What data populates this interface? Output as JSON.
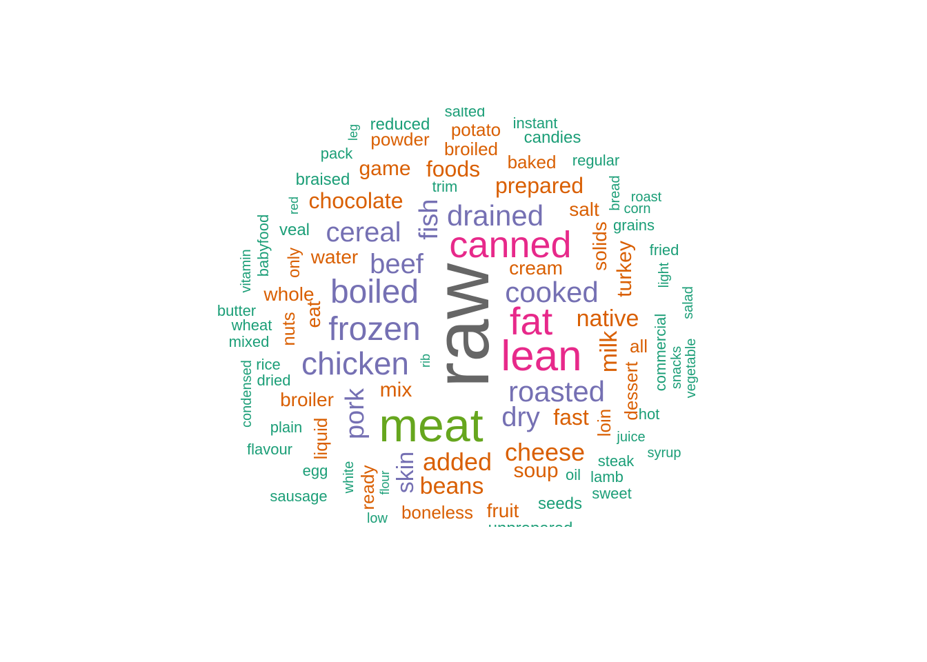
{
  "palette": {
    "tier1": "#666666",
    "tier2": "#66a61e",
    "tier3": "#e7298a",
    "tier4": "#7570b3",
    "tier5": "#d95f02",
    "tier6": "#1b9e77"
  },
  "words": [
    {
      "text": "raw",
      "tier": "tier1",
      "vertical": true
    },
    {
      "text": "meat",
      "tier": "tier2",
      "vertical": false
    },
    {
      "text": "lean",
      "tier": "tier3",
      "vertical": false
    },
    {
      "text": "canned",
      "tier": "tier3",
      "vertical": false
    },
    {
      "text": "fat",
      "tier": "tier3",
      "vertical": false
    },
    {
      "text": "frozen",
      "tier": "tier4",
      "vertical": false
    },
    {
      "text": "boiled",
      "tier": "tier4",
      "vertical": false
    },
    {
      "text": "chicken",
      "tier": "tier4",
      "vertical": false
    },
    {
      "text": "cooked",
      "tier": "tier4",
      "vertical": false
    },
    {
      "text": "roasted",
      "tier": "tier4",
      "vertical": false
    },
    {
      "text": "drained",
      "tier": "tier4",
      "vertical": false
    },
    {
      "text": "cereal",
      "tier": "tier4",
      "vertical": false
    },
    {
      "text": "beef",
      "tier": "tier4",
      "vertical": false
    },
    {
      "text": "dry",
      "tier": "tier4",
      "vertical": false
    },
    {
      "text": "pork",
      "tier": "tier4",
      "vertical": true
    },
    {
      "text": "fish",
      "tier": "tier4",
      "vertical": true
    },
    {
      "text": "skin",
      "tier": "tier4",
      "vertical": true
    },
    {
      "text": "cheese",
      "tier": "tier5",
      "vertical": false
    },
    {
      "text": "added",
      "tier": "tier5",
      "vertical": false
    },
    {
      "text": "native",
      "tier": "tier5",
      "vertical": false
    },
    {
      "text": "prepared",
      "tier": "tier5",
      "vertical": false
    },
    {
      "text": "chocolate",
      "tier": "tier5",
      "vertical": false
    },
    {
      "text": "beans",
      "tier": "tier5",
      "vertical": false
    },
    {
      "text": "foods",
      "tier": "tier5",
      "vertical": false
    },
    {
      "text": "game",
      "tier": "tier5",
      "vertical": false
    },
    {
      "text": "soup",
      "tier": "tier5",
      "vertical": false
    },
    {
      "text": "fast",
      "tier": "tier5",
      "vertical": false
    },
    {
      "text": "mix",
      "tier": "tier5",
      "vertical": false
    },
    {
      "text": "water",
      "tier": "tier5",
      "vertical": false
    },
    {
      "text": "whole",
      "tier": "tier5",
      "vertical": false
    },
    {
      "text": "cream",
      "tier": "tier5",
      "vertical": false
    },
    {
      "text": "salt",
      "tier": "tier5",
      "vertical": false
    },
    {
      "text": "broiler",
      "tier": "tier5",
      "vertical": false
    },
    {
      "text": "boneless",
      "tier": "tier5",
      "vertical": false
    },
    {
      "text": "fruit",
      "tier": "tier5",
      "vertical": false
    },
    {
      "text": "potato",
      "tier": "tier5",
      "vertical": false
    },
    {
      "text": "powder",
      "tier": "tier5",
      "vertical": false
    },
    {
      "text": "broiled",
      "tier": "tier5",
      "vertical": false
    },
    {
      "text": "baked",
      "tier": "tier5",
      "vertical": false
    },
    {
      "text": "milk",
      "tier": "tier5",
      "vertical": true
    },
    {
      "text": "turkey",
      "tier": "tier5",
      "vertical": true
    },
    {
      "text": "solids",
      "tier": "tier5",
      "vertical": true
    },
    {
      "text": "eat",
      "tier": "tier5",
      "vertical": true
    },
    {
      "text": "nuts",
      "tier": "tier5",
      "vertical": true
    },
    {
      "text": "only",
      "tier": "tier5",
      "vertical": true
    },
    {
      "text": "dessert",
      "tier": "tier5",
      "vertical": true
    },
    {
      "text": "loin",
      "tier": "tier5",
      "vertical": true
    },
    {
      "text": "all",
      "tier": "tier5",
      "vertical": false
    },
    {
      "text": "liquid",
      "tier": "tier5",
      "vertical": true
    },
    {
      "text": "ready",
      "tier": "tier5",
      "vertical": true
    },
    {
      "text": "reduced",
      "tier": "tier6",
      "vertical": false
    },
    {
      "text": "salted",
      "tier": "tier6",
      "vertical": false
    },
    {
      "text": "instant",
      "tier": "tier6",
      "vertical": false
    },
    {
      "text": "candies",
      "tier": "tier6",
      "vertical": false
    },
    {
      "text": "pack",
      "tier": "tier6",
      "vertical": false
    },
    {
      "text": "regular",
      "tier": "tier6",
      "vertical": false
    },
    {
      "text": "braised",
      "tier": "tier6",
      "vertical": false
    },
    {
      "text": "trim",
      "tier": "tier6",
      "vertical": false
    },
    {
      "text": "roast",
      "tier": "tier6",
      "vertical": false
    },
    {
      "text": "corn",
      "tier": "tier6",
      "vertical": false
    },
    {
      "text": "grains",
      "tier": "tier6",
      "vertical": false
    },
    {
      "text": "veal",
      "tier": "tier6",
      "vertical": false
    },
    {
      "text": "fried",
      "tier": "tier6",
      "vertical": false
    },
    {
      "text": "butter",
      "tier": "tier6",
      "vertical": false
    },
    {
      "text": "wheat",
      "tier": "tier6",
      "vertical": false
    },
    {
      "text": "mixed",
      "tier": "tier6",
      "vertical": false
    },
    {
      "text": "rice",
      "tier": "tier6",
      "vertical": false
    },
    {
      "text": "dried",
      "tier": "tier6",
      "vertical": false
    },
    {
      "text": "plain",
      "tier": "tier6",
      "vertical": false
    },
    {
      "text": "flavour",
      "tier": "tier6",
      "vertical": false
    },
    {
      "text": "egg",
      "tier": "tier6",
      "vertical": false
    },
    {
      "text": "sausage",
      "tier": "tier6",
      "vertical": false
    },
    {
      "text": "low",
      "tier": "tier6",
      "vertical": false
    },
    {
      "text": "seeds",
      "tier": "tier6",
      "vertical": false
    },
    {
      "text": "oil",
      "tier": "tier6",
      "vertical": false
    },
    {
      "text": "lamb",
      "tier": "tier6",
      "vertical": false
    },
    {
      "text": "sweet",
      "tier": "tier6",
      "vertical": false
    },
    {
      "text": "steak",
      "tier": "tier6",
      "vertical": false
    },
    {
      "text": "juice",
      "tier": "tier6",
      "vertical": false
    },
    {
      "text": "hot",
      "tier": "tier6",
      "vertical": false
    },
    {
      "text": "syrup",
      "tier": "tier6",
      "vertical": false
    },
    {
      "text": "unprepared",
      "tier": "tier6",
      "vertical": false
    },
    {
      "text": "leg",
      "tier": "tier6",
      "vertical": true
    },
    {
      "text": "red",
      "tier": "tier6",
      "vertical": true
    },
    {
      "text": "bread",
      "tier": "tier6",
      "vertical": true
    },
    {
      "text": "babyfood",
      "tier": "tier6",
      "vertical": true
    },
    {
      "text": "vitamin",
      "tier": "tier6",
      "vertical": true
    },
    {
      "text": "light",
      "tier": "tier6",
      "vertical": true
    },
    {
      "text": "salad",
      "tier": "tier6",
      "vertical": true
    },
    {
      "text": "commercial",
      "tier": "tier6",
      "vertical": true
    },
    {
      "text": "snacks",
      "tier": "tier6",
      "vertical": true
    },
    {
      "text": "vegetable",
      "tier": "tier6",
      "vertical": true
    },
    {
      "text": "condensed",
      "tier": "tier6",
      "vertical": true
    },
    {
      "text": "rib",
      "tier": "tier6",
      "vertical": true
    },
    {
      "text": "white",
      "tier": "tier6",
      "vertical": true
    },
    {
      "text": "flour",
      "tier": "tier6",
      "vertical": true
    }
  ]
}
